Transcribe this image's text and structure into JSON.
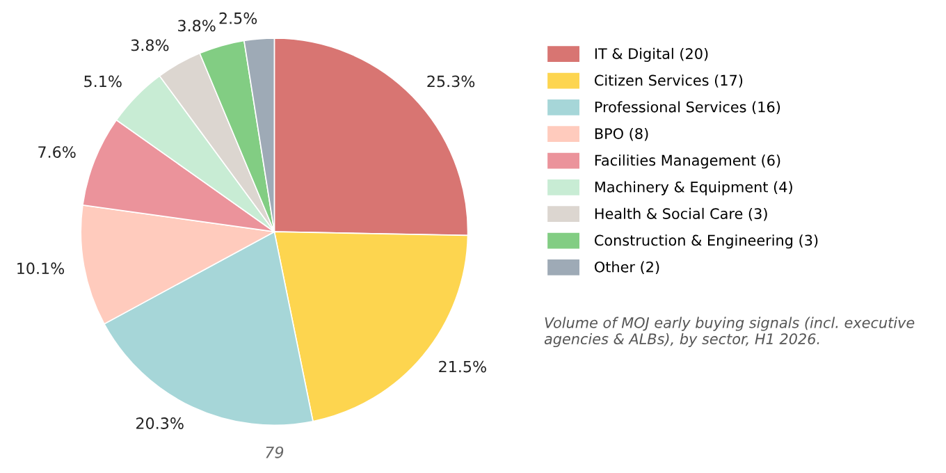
{
  "chart_data": {
    "type": "pie",
    "categories": [
      "IT & Digital (20)",
      "Citizen Services (17)",
      "Professional Services (16)",
      "BPO (8)",
      "Facilities Management (6)",
      "Machinery & Equipment (4)",
      "Health & Social Care (3)",
      "Construction & Engineering (3)",
      "Other (2)"
    ],
    "values": [
      25.3,
      21.5,
      20.3,
      10.1,
      7.6,
      5.1,
      3.8,
      3.8,
      2.5
    ],
    "value_labels": [
      "25.3%",
      "21.5%",
      "20.3%",
      "10.1%",
      "7.6%",
      "5.1%",
      "3.8%",
      "3.8%",
      "2.5%"
    ],
    "colors": [
      "#d87572",
      "#fdd54f",
      "#a6d6d8",
      "#ffcbbd",
      "#eb939b",
      "#c8ecd4",
      "#dcd6d0",
      "#82cd83",
      "#9eaab6"
    ],
    "legend": "right",
    "annotations": [
      {
        "text": "79"
      },
      {
        "text": "Volume of MOJ early buying signals (incl. executive agencies & ALBs), by sector, H1 2026."
      }
    ]
  }
}
